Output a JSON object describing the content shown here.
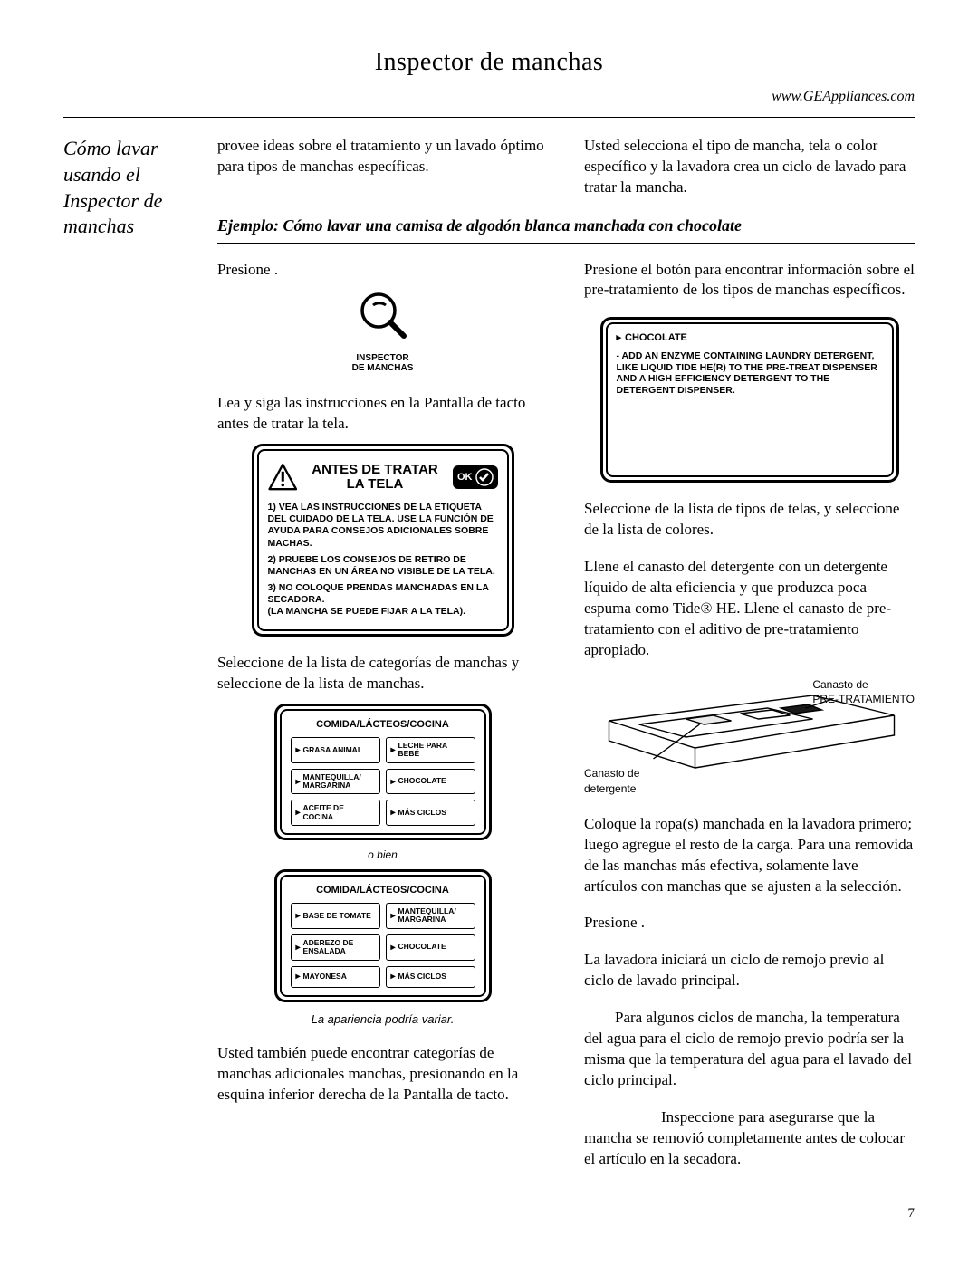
{
  "page_title": "Inspector de manchas",
  "url": "www.GEAppliances.com",
  "sidebar_title": "Cómo lavar usando el Inspector de manchas",
  "intro_left": "provee ideas sobre el tratamiento y un lavado óptimo para tipos de manchas específicas.",
  "intro_right": "Usted selecciona el tipo de mancha, tela o color específico y la lavadora crea un ciclo de lavado para tratar la mancha.",
  "example": "Ejemplo: Cómo lavar una camisa de algodón blanca manchada con chocolate",
  "l1a": "Presione",
  "l_icon_label": "INSPECTOR\nDE MANCHAS",
  "l2": "Lea y siga las instrucciones en la Pantalla de tacto antes de tratar la tela.",
  "antes_title": "ANTES DE TRATAR LA TELA",
  "ok": "OK",
  "antes_p1": "1) VEA LAS INSTRUCCIONES DE LA ETIQUETA DEL CUIDADO DE LA TELA. USE LA FUNCIÓN DE AYUDA PARA CONSEJOS ADICIONALES SOBRE MACHAS.",
  "antes_p2": "2) PRUEBE LOS CONSEJOS DE RETIRO DE MANCHAS EN UN ÁREA NO VISIBLE DE LA TELA.",
  "antes_p3": "3) NO COLOQUE PRENDAS MANCHADAS EN LA SECADORA.\n(LA MANCHA SE PUEDE FIJAR A LA TELA).",
  "l3": "Seleccione de la lista de categorías de manchas y seleccione de la lista de manchas.",
  "sel_title": "COMIDA/LÁCTEOS/COCINA",
  "sel1": [
    "GRASA ANIMAL",
    "LECHE PARA BEBÉ",
    "MANTEQUILLA/ MARGARINA",
    "CHOCOLATE",
    "ACEITE DE COCINA",
    "MÁS CICLOS"
  ],
  "obien": "o bien",
  "sel2": [
    "BASE DE TOMATE",
    "MANTEQUILLA/ MARGARINA",
    "ADEREZO DE ENSALADA",
    "CHOCOLATE",
    "MAYONESA",
    "MÁS CICLOS"
  ],
  "caption": "La apariencia podría variar.",
  "l4": "Usted también puede encontrar categorías de manchas adicionales manchas, presionando en la esquina inferior derecha de la Pantalla de tacto.",
  "r1": "Presione el botón para encontrar información sobre el pre-tratamiento de los tipos de manchas específicos.",
  "choc_head": "CHOCOLATE",
  "choc_body": "- ADD AN ENZYME CONTAINING LAUNDRY DETERGENT, LIKE LIQUID TIDE HE(R) TO THE PRE-TREAT DISPENSER AND A HIGH EFFICIENCY DETERGENT TO THE DETERGENT DISPENSER.",
  "r2": "Seleccione de la lista de tipos de telas, y seleccione de la lista de colores.",
  "r3": "Llene el canasto del detergente con un detergente líquido de alta eficiencia y que produzca poca espuma como Tide® HE. Llene el canasto de pre-tratamiento con el aditivo de pre-tratamiento apropiado.",
  "d_pre": "Canasto de\nPRE-TRATAMIENTO",
  "d_det": "Canasto de\ndetergente",
  "r4": "Coloque la ropa(s) manchada en la lavadora primero; luego agregue el resto de la carga. Para una removida de las manchas más efectiva, solamente lave artículos con manchas que se ajusten a la selección.",
  "r5a": "Presione",
  "r5b": ".",
  "r6": "La lavadora iniciará un ciclo de remojo previo al ciclo de lavado principal.",
  "r7": "Para algunos ciclos de mancha, la temperatura del agua para el ciclo de remojo previo podría ser la misma que la temperatura del agua para el lavado del ciclo principal.",
  "r8": "Inspeccione para asegurarse que la mancha se removió completamente antes de colocar el artículo en la secadora.",
  "pagenum": "7"
}
